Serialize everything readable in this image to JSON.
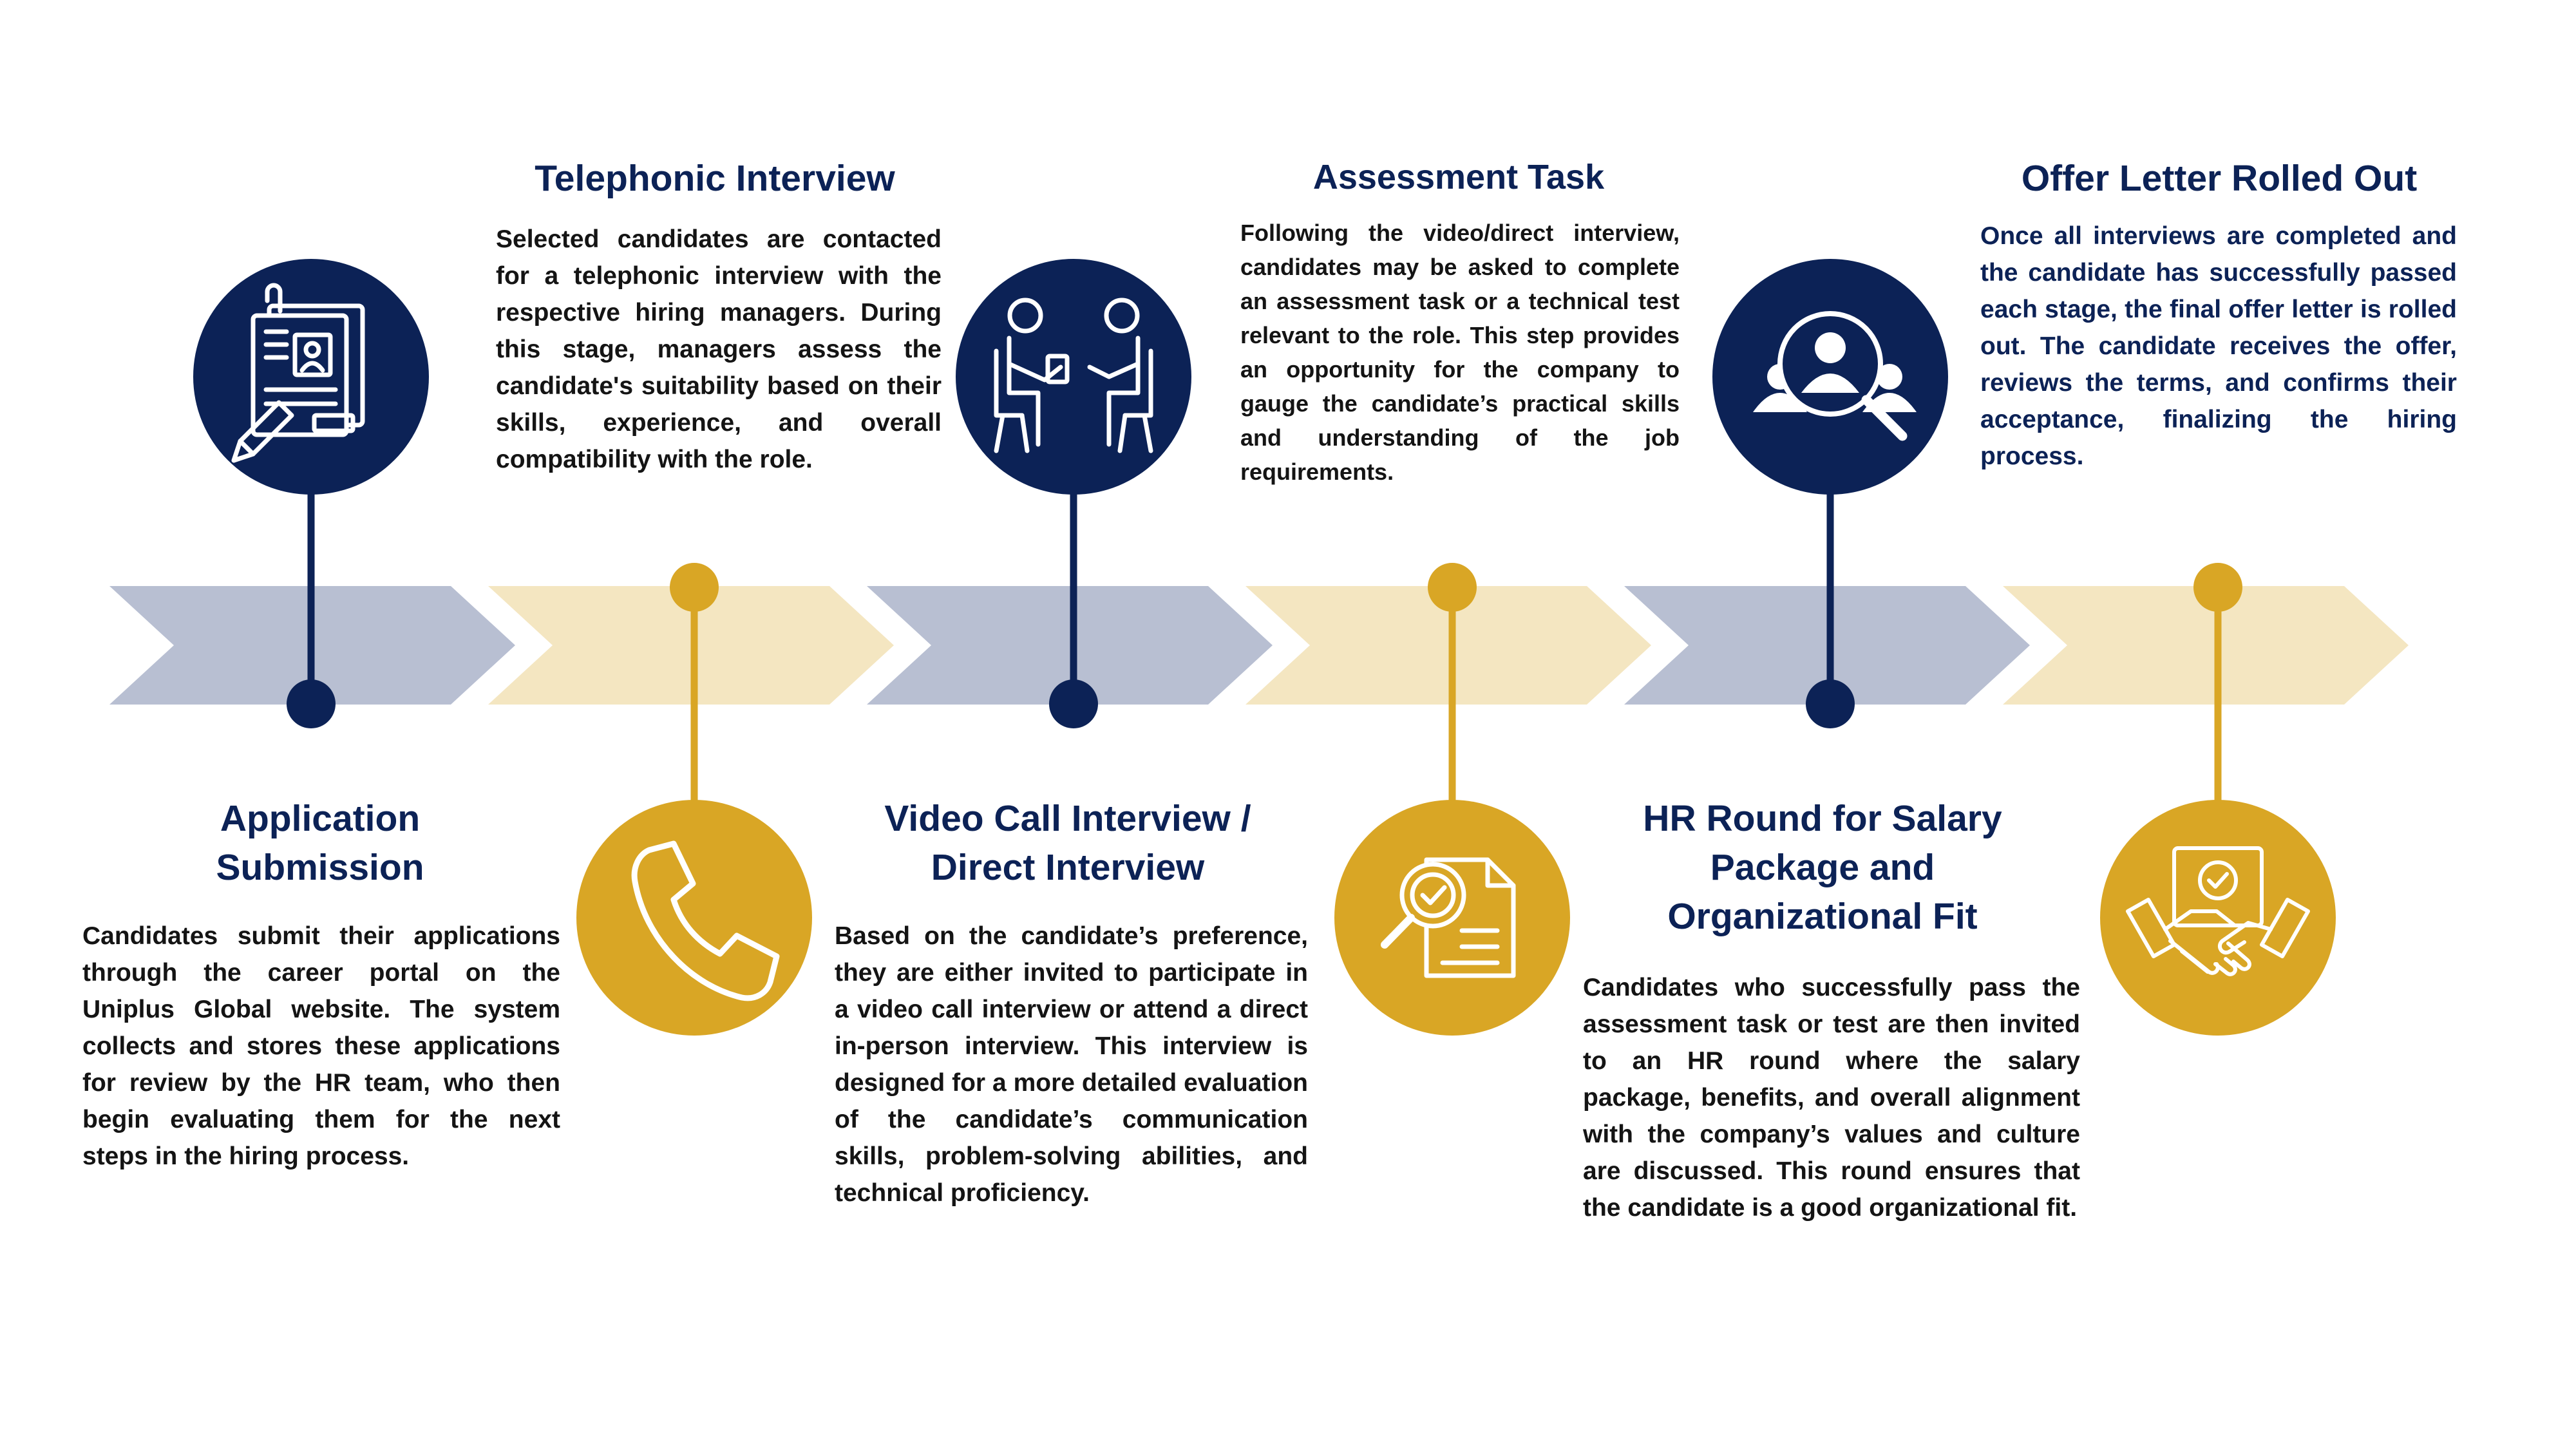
{
  "colors": {
    "navy": "#0c2256",
    "gold": "#d9a625",
    "arrow_blue": "#b8bfd2",
    "arrow_cream": "#f4e6c1",
    "text": "#141414"
  },
  "steps": [
    {
      "title": "Application Submission",
      "title_lines": [
        "Application",
        "Submission"
      ],
      "description": "Candidates submit their applications through the career portal on the Uniplus Global website. The system collects and stores these applications for review by the HR team, who then begin evaluating them for the next steps in the hiring process.",
      "icon": "application-form-icon",
      "color": "navy"
    },
    {
      "title": "Telephonic Interview",
      "title_lines": [
        "Telephonic Interview"
      ],
      "description": "Selected candidates are contacted for a telephonic interview with the respective hiring managers. During this stage, managers assess the candidate's suitability based on their skills, experience, and overall compatibility with the role.",
      "icon": "phone-icon",
      "color": "gold"
    },
    {
      "title": "Video Call Interview / Direct Interview",
      "title_lines": [
        "Video Call Interview /",
        "Direct Interview"
      ],
      "description": "Based on the candidate’s preference, they are either invited to participate in a video call interview or attend a direct in-person interview. This interview is designed for a more detailed evaluation of the candidate’s communication skills, problem-solving abilities, and technical proficiency.",
      "icon": "interview-people-icon",
      "color": "navy"
    },
    {
      "title": "Assessment Task",
      "title_lines": [
        "Assessment Task"
      ],
      "description": "Following the video/direct interview, candidates may be asked to complete an assessment task or a technical test relevant to the role. This step provides an opportunity for the company to gauge the candidate’s practical skills and understanding of the job requirements.",
      "icon": "assessment-document-icon",
      "color": "gold"
    },
    {
      "title": "HR Round for Salary Package and Organizational Fit",
      "title_lines": [
        "HR Round for Salary",
        "Package and",
        "Organizational Fit"
      ],
      "description": "Candidates who successfully pass the assessment task or test are then invited to an HR round where the salary package, benefits, and overall alignment with the company’s values and culture are discussed. This round ensures that the candidate is a good organizational fit.",
      "icon": "candidate-search-icon",
      "color": "navy"
    },
    {
      "title": "Offer Letter Rolled Out",
      "title_lines": [
        "Offer Letter Rolled Out"
      ],
      "description": "Once all interviews are completed and the candidate has successfully passed each stage, the final offer letter is rolled out. The candidate receives the offer, reviews the terms, and confirms their acceptance, finalizing the hiring process.",
      "icon": "offer-handshake-icon",
      "color": "gold"
    }
  ]
}
